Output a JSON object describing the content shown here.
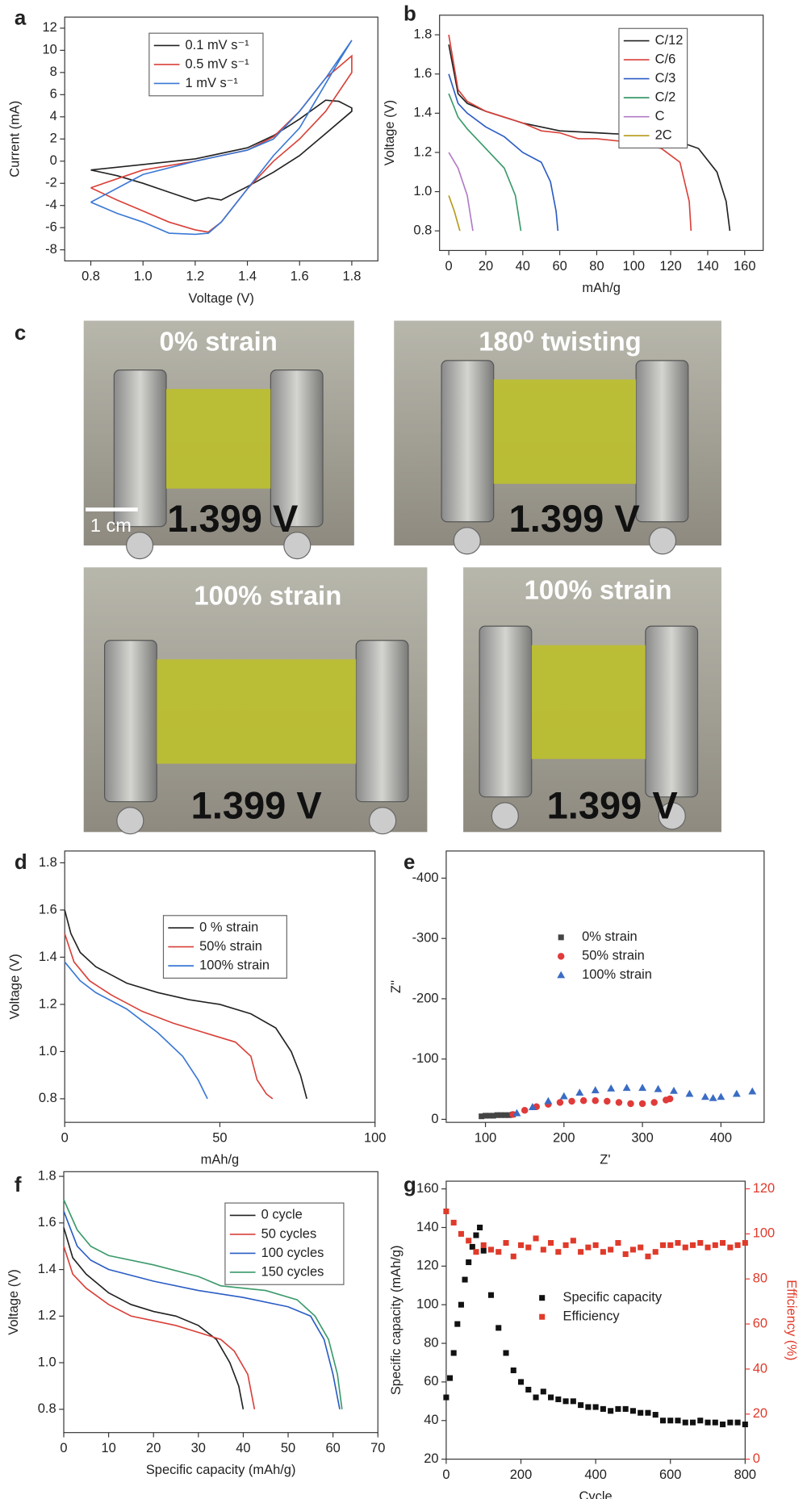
{
  "chart_data": [
    {
      "type": "line",
      "label": "a",
      "xlabel": "Voltage (V)",
      "ylabel": "Current (mA)",
      "xlim": [
        0.7,
        1.9
      ],
      "ylim": [
        -9,
        13
      ],
      "xticks": [
        0.8,
        {
          "value": 1,
          "label": "1.0"
        },
        1.2,
        1.4,
        1.6,
        1.8
      ],
      "yticks": [
        -8,
        -6,
        -4,
        -2,
        0,
        2,
        4,
        6,
        8,
        10,
        12
      ],
      "series": [
        {
          "name": "0.1 mV s⁻¹",
          "color": "#222222",
          "x": [
            0.8,
            1.0,
            1.2,
            1.4,
            1.5,
            1.6,
            1.7,
            1.75,
            1.8,
            1.8,
            1.7,
            1.6,
            1.5,
            1.4,
            1.3,
            1.25,
            1.2,
            1.1,
            1.0,
            0.9,
            0.8
          ],
          "values": [
            -0.8,
            -0.3,
            0.2,
            1.2,
            2.3,
            3.8,
            5.5,
            5.4,
            4.8,
            4.5,
            2.5,
            0.5,
            -1,
            -2.3,
            -3.5,
            -3.3,
            -3.6,
            -2.8,
            -2,
            -1.3,
            -0.8
          ]
        },
        {
          "name": "0.5 mV s⁻¹",
          "color": "#d9413a",
          "x": [
            0.8,
            1.0,
            1.2,
            1.4,
            1.5,
            1.6,
            1.7,
            1.8,
            1.8,
            1.7,
            1.6,
            1.5,
            1.4,
            1.3,
            1.25,
            1.2,
            1.1,
            1.0,
            0.9,
            0.8
          ],
          "values": [
            -2.4,
            -0.8,
            0,
            1,
            2.2,
            4.5,
            7.5,
            9.5,
            8,
            4.5,
            2,
            0,
            -2.5,
            -5.5,
            -6.4,
            -6.2,
            -5.5,
            -4.5,
            -3.5,
            -2.4
          ]
        },
        {
          "name": "1 mV s⁻¹",
          "color": "#3a78d4",
          "x": [
            0.8,
            1.0,
            1.2,
            1.4,
            1.5,
            1.6,
            1.7,
            1.8,
            1.75,
            1.7,
            1.6,
            1.5,
            1.4,
            1.3,
            1.25,
            1.2,
            1.1,
            1.0,
            0.9,
            0.8
          ],
          "values": [
            -3.7,
            -1.2,
            0,
            1,
            2,
            4.5,
            7.5,
            10.9,
            9,
            7,
            3,
            0.5,
            -2.5,
            -5.5,
            -6.5,
            -6.6,
            -6.5,
            -5.5,
            -4.7,
            -3.7
          ]
        }
      ]
    },
    {
      "type": "line",
      "label": "b",
      "xlabel": "mAh/g",
      "ylabel": "Voltage (V)",
      "xlim": [
        -5,
        170
      ],
      "ylim": [
        0.7,
        1.9
      ],
      "xticks": [
        0,
        20,
        40,
        60,
        80,
        100,
        120,
        140,
        160
      ],
      "yticks": [
        0.8,
        {
          "value": 1,
          "label": "1.0"
        },
        1.2,
        1.4,
        1.6,
        1.8
      ],
      "series": [
        {
          "name": "C/12",
          "color": "#222222",
          "x": [
            0,
            5,
            10,
            20,
            40,
            60,
            80,
            100,
            120,
            135,
            145,
            150,
            152
          ],
          "values": [
            1.75,
            1.5,
            1.45,
            1.41,
            1.35,
            1.31,
            1.3,
            1.29,
            1.27,
            1.22,
            1.1,
            0.95,
            0.8
          ]
        },
        {
          "name": "C/6",
          "color": "#d9413a",
          "x": [
            0,
            5,
            10,
            20,
            40,
            50,
            60,
            70,
            80,
            100,
            115,
            125,
            130,
            131
          ],
          "values": [
            1.8,
            1.52,
            1.46,
            1.41,
            1.35,
            1.31,
            1.3,
            1.27,
            1.27,
            1.25,
            1.22,
            1.15,
            0.95,
            0.8
          ]
        },
        {
          "name": "C/3",
          "color": "#2a5cc4",
          "x": [
            0,
            5,
            10,
            20,
            30,
            40,
            50,
            55,
            58,
            59
          ],
          "values": [
            1.6,
            1.45,
            1.4,
            1.33,
            1.28,
            1.2,
            1.15,
            1.05,
            0.9,
            0.8
          ]
        },
        {
          "name": "C/2",
          "color": "#3a9a6a",
          "x": [
            0,
            5,
            10,
            20,
            30,
            36,
            39
          ],
          "values": [
            1.5,
            1.38,
            1.32,
            1.22,
            1.12,
            0.98,
            0.8
          ]
        },
        {
          "name": "C",
          "color": "#b07cc6",
          "x": [
            0,
            5,
            10,
            13
          ],
          "values": [
            1.2,
            1.12,
            0.98,
            0.8
          ]
        },
        {
          "name": "2C",
          "color": "#b89a1c",
          "x": [
            0,
            3,
            6
          ],
          "values": [
            0.98,
            0.9,
            0.8
          ]
        }
      ]
    },
    {
      "type": "line",
      "label": "d",
      "xlabel": "mAh/g",
      "ylabel": "Voltage (V)",
      "xlim": [
        0,
        100
      ],
      "ylim": [
        0.7,
        1.85
      ],
      "xticks": [
        0,
        50,
        100
      ],
      "yticks": [
        0.8,
        {
          "value": 1,
          "label": "1.0"
        },
        1.2,
        1.4,
        1.6,
        1.8
      ],
      "series": [
        {
          "name": "0 % strain",
          "color": "#222222",
          "x": [
            0,
            2,
            5,
            10,
            20,
            30,
            40,
            50,
            60,
            68,
            73,
            76,
            78
          ],
          "values": [
            1.6,
            1.5,
            1.42,
            1.36,
            1.29,
            1.25,
            1.22,
            1.2,
            1.16,
            1.1,
            1.0,
            0.9,
            0.8
          ]
        },
        {
          "name": "50% strain",
          "color": "#d9413a",
          "x": [
            0,
            3,
            8,
            15,
            25,
            35,
            45,
            55,
            60,
            62,
            65,
            67
          ],
          "values": [
            1.5,
            1.38,
            1.3,
            1.24,
            1.17,
            1.12,
            1.08,
            1.04,
            0.98,
            0.88,
            0.82,
            0.8
          ]
        },
        {
          "name": "100% strain",
          "color": "#3a78d4",
          "x": [
            0,
            5,
            10,
            20,
            30,
            38,
            43,
            46
          ],
          "values": [
            1.38,
            1.3,
            1.25,
            1.18,
            1.08,
            0.98,
            0.88,
            0.8
          ]
        }
      ]
    },
    {
      "type": "scatter",
      "label": "e",
      "xlabel": "Z'",
      "ylabel": "Z''",
      "xlim": [
        50,
        455
      ],
      "ylim": [
        5,
        -445
      ],
      "xticks": [
        100,
        200,
        300,
        400
      ],
      "yticks": [
        0,
        -100,
        -200,
        -300,
        -400
      ],
      "series": [
        {
          "name": "0% strain",
          "color": "#444444",
          "marker": "square",
          "x": [
            95,
            100,
            105,
            110,
            115,
            120,
            125,
            130,
            135
          ],
          "values": [
            -5,
            -6,
            -6,
            -6,
            -7,
            -7,
            -7,
            -7,
            -8
          ]
        },
        {
          "name": "50% strain",
          "color": "#e03a3a",
          "marker": "circle",
          "x": [
            135,
            150,
            165,
            180,
            195,
            210,
            225,
            240,
            255,
            270,
            285,
            300,
            315,
            330,
            335
          ],
          "values": [
            -8,
            -15,
            -21,
            -25,
            -28,
            -30,
            -31,
            -31,
            -30,
            -28,
            -26,
            -26,
            -28,
            -32,
            -34
          ]
        },
        {
          "name": "100% strain",
          "color": "#3a6cc4",
          "marker": "triangle",
          "x": [
            140,
            160,
            180,
            200,
            220,
            240,
            260,
            280,
            300,
            320,
            340,
            360,
            380,
            390,
            400,
            420,
            440
          ],
          "values": [
            -10,
            -20,
            -30,
            -38,
            -44,
            -48,
            -51,
            -52,
            -52,
            -50,
            -47,
            -42,
            -37,
            -35,
            -37,
            -42,
            -46
          ]
        }
      ]
    },
    {
      "type": "line",
      "label": "f",
      "xlabel": "Specific capacity (mAh/g)",
      "ylabel": "Voltage (V)",
      "xlim": [
        0,
        70
      ],
      "ylim": [
        0.7,
        1.82
      ],
      "xticks": [
        0,
        10,
        20,
        30,
        40,
        50,
        60,
        70
      ],
      "yticks": [
        0.8,
        {
          "value": 1,
          "label": "1.0"
        },
        1.2,
        1.4,
        1.6,
        1.8
      ],
      "series": [
        {
          "name": "0 cycle",
          "color": "#222222",
          "x": [
            0,
            2,
            5,
            10,
            15,
            20,
            25,
            30,
            34,
            37,
            39,
            40
          ],
          "values": [
            1.58,
            1.45,
            1.38,
            1.3,
            1.25,
            1.22,
            1.2,
            1.16,
            1.1,
            1.0,
            0.9,
            0.8
          ]
        },
        {
          "name": "50 cycles",
          "color": "#d9413a",
          "x": [
            0,
            2,
            5,
            10,
            15,
            20,
            25,
            30,
            35,
            38,
            41,
            42.5
          ],
          "values": [
            1.5,
            1.38,
            1.32,
            1.25,
            1.2,
            1.18,
            1.16,
            1.13,
            1.1,
            1.05,
            0.95,
            0.8
          ]
        },
        {
          "name": "100 cycles",
          "color": "#2a5cc4",
          "x": [
            0,
            3,
            6,
            10,
            20,
            30,
            40,
            50,
            55,
            58,
            60,
            61.5
          ],
          "values": [
            1.65,
            1.5,
            1.44,
            1.4,
            1.35,
            1.31,
            1.28,
            1.24,
            1.2,
            1.1,
            0.95,
            0.8
          ]
        },
        {
          "name": "150 cycles",
          "color": "#3a9a6a",
          "x": [
            0,
            3,
            6,
            10,
            20,
            30,
            35,
            45,
            52,
            56,
            59,
            61,
            62
          ],
          "values": [
            1.7,
            1.57,
            1.5,
            1.46,
            1.42,
            1.37,
            1.33,
            1.31,
            1.27,
            1.2,
            1.1,
            0.95,
            0.8
          ]
        }
      ]
    },
    {
      "type": "scatter",
      "label": "g",
      "xlabel": "Cycle",
      "ylabel": "Specific capacity (mAh/g)",
      "y2label": "Efficiency (%)",
      "y2color": "#e03a2a",
      "xlim": [
        0,
        800
      ],
      "ylim": [
        20,
        164
      ],
      "y2lim": [
        0,
        123.4
      ],
      "xticks": [
        0,
        200,
        400,
        600,
        800
      ],
      "yticks": [
        20,
        40,
        60,
        80,
        100,
        120,
        140,
        160
      ],
      "y2ticks": [
        0,
        20,
        40,
        60,
        80,
        100,
        120
      ],
      "series": [
        {
          "name": "Specific capacity",
          "color": "#111111",
          "marker": "square",
          "x": [
            0,
            10,
            20,
            30,
            40,
            50,
            60,
            70,
            80,
            90,
            100,
            120,
            140,
            160,
            180,
            200,
            220,
            240,
            260,
            280,
            300,
            320,
            340,
            360,
            380,
            400,
            420,
            440,
            460,
            480,
            500,
            520,
            540,
            560,
            580,
            600,
            620,
            640,
            660,
            680,
            700,
            720,
            740,
            760,
            780,
            800
          ],
          "values": [
            52,
            62,
            75,
            90,
            100,
            113,
            122,
            130,
            136,
            140,
            128,
            105,
            88,
            75,
            66,
            60,
            56,
            52,
            55,
            52,
            51,
            50,
            50,
            48,
            47,
            47,
            46,
            45,
            46,
            46,
            45,
            44,
            44,
            43,
            40,
            40,
            40,
            39,
            39,
            40,
            39,
            39,
            38,
            39,
            39,
            38
          ]
        },
        {
          "name": "Efficiency",
          "color": "#e03a2a",
          "marker": "square",
          "axis": "y2",
          "x": [
            0,
            20,
            40,
            60,
            80,
            100,
            120,
            140,
            160,
            180,
            200,
            220,
            240,
            260,
            280,
            300,
            320,
            340,
            360,
            380,
            400,
            420,
            440,
            460,
            480,
            500,
            520,
            540,
            560,
            580,
            600,
            620,
            640,
            660,
            680,
            700,
            720,
            740,
            760,
            780,
            800
          ],
          "values": [
            110,
            105,
            100,
            97,
            92,
            95,
            93,
            92,
            96,
            90,
            95,
            94,
            98,
            93,
            96,
            92,
            95,
            97,
            92,
            94,
            95,
            92,
            93,
            96,
            91,
            93,
            94,
            90,
            92,
            95,
            95,
            96,
            94,
            95,
            96,
            94,
            95,
            96,
            94,
            95,
            96
          ]
        }
      ]
    }
  ],
  "panel_c": {
    "label": "c",
    "photos": [
      {
        "caption": "0% strain",
        "voltage": "1.399 V",
        "scale": "1 cm"
      },
      {
        "caption": "180⁰ twisting",
        "voltage": "1.399 V"
      },
      {
        "caption": "100% strain",
        "voltage": "1.399 V"
      },
      {
        "caption": "100% strain",
        "voltage": "1.399 V"
      }
    ]
  }
}
